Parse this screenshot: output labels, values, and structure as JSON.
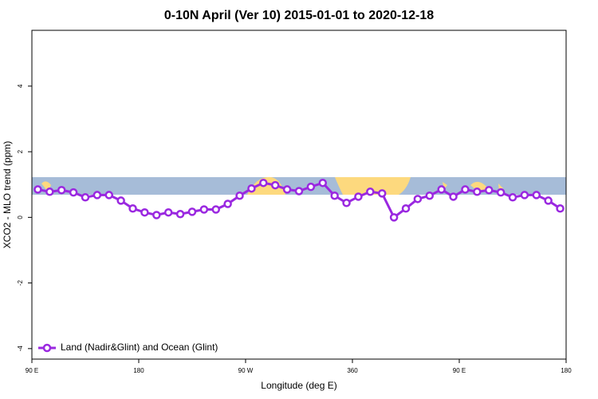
{
  "chart_data": {
    "type": "line",
    "title": "0-10N April (Ver 10)   2015-01-01 to 2020-12-18",
    "x_label": "Longitude (deg E)",
    "y_label": "XCO2 - MLO trend (ppm)",
    "xlim": [
      90,
      540
    ],
    "ylim": [
      -4.32,
      5.7
    ],
    "xticks": [
      {
        "value": 90,
        "label": "90 E"
      },
      180,
      {
        "value": 270,
        "label": "90 W"
      },
      360,
      {
        "value": 450,
        "label": "90 E"
      },
      {
        "value": 540,
        "label": "180"
      }
    ],
    "yticks": [
      -4,
      -2,
      0,
      2,
      4
    ],
    "legend": "bottom-left",
    "x": [
      95,
      105,
      115,
      125,
      135,
      145,
      155,
      165,
      175,
      185,
      195,
      205,
      215,
      225,
      235,
      245,
      255,
      265,
      275,
      285,
      295,
      305,
      315,
      325,
      335,
      345,
      355,
      365,
      375,
      385,
      395,
      405,
      415,
      425,
      435,
      445,
      455,
      465,
      475,
      485,
      495,
      505,
      515,
      525,
      535
    ],
    "series": [
      {
        "name": "Land (Nadir&Glint) and Ocean (Glint)",
        "color": "#9a28e0",
        "values": [
          0.85,
          0.78,
          0.83,
          0.76,
          0.61,
          0.68,
          0.68,
          0.51,
          0.27,
          0.15,
          0.07,
          0.15,
          0.1,
          0.17,
          0.24,
          0.24,
          0.41,
          0.66,
          0.88,
          1.05,
          0.98,
          0.85,
          0.8,
          0.93,
          1.05,
          0.66,
          0.44,
          0.63,
          0.78,
          0.73,
          0.0,
          0.27,
          0.56,
          0.66,
          0.85,
          0.63,
          0.85,
          0.78,
          0.83,
          0.76,
          0.61,
          0.68,
          0.68,
          0.51,
          0.27
        ]
      }
    ]
  }
}
